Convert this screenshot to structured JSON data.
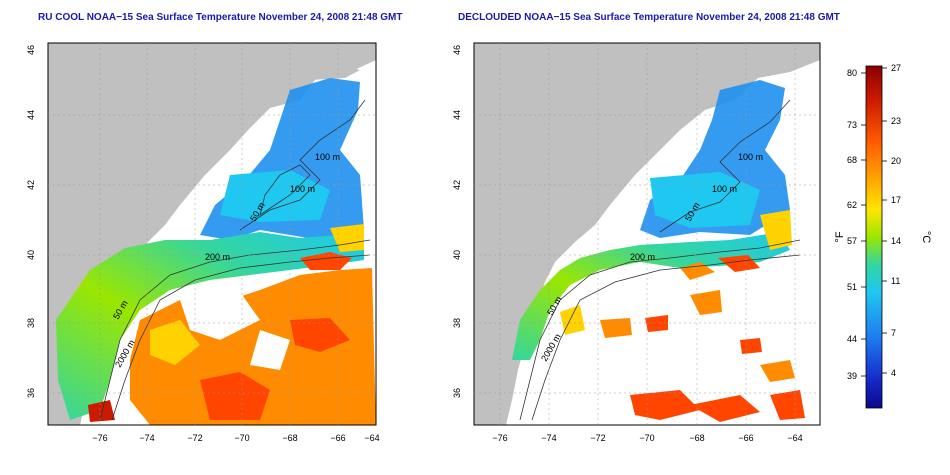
{
  "panels": [
    {
      "title": "RU COOL NOAA−15 Sea Surface Temperature November 24, 2008 21:48 GMT",
      "contour_labels": [
        "100 m",
        "100 m",
        "50 m",
        "200 m",
        "50 m",
        "2000 m"
      ],
      "coverage": "full"
    },
    {
      "title": "DECLOUDED NOAA−15 Sea Surface Temperature November 24, 2008 21:48 GMT",
      "contour_labels": [
        "100 m",
        "100 m",
        "50 m",
        "200 m",
        "50 m",
        "2000 m"
      ],
      "coverage": "declouded"
    }
  ],
  "axes": {
    "x_ticks": [
      "−76",
      "−74",
      "−72",
      "−70",
      "−68",
      "−66",
      "−64"
    ],
    "y_ticks": [
      "36",
      "38",
      "40",
      "42",
      "44",
      "46"
    ]
  },
  "colorbar": {
    "f_label": "°F",
    "c_label": "°C",
    "f_ticks": [
      "80",
      "73",
      "68",
      "62",
      "57",
      "51",
      "44",
      "39"
    ],
    "c_ticks": [
      "27",
      "23",
      "20",
      "17",
      "14",
      "11",
      "7",
      "4"
    ],
    "colors": [
      "#8b0000",
      "#cc1a00",
      "#ff5a00",
      "#ffa500",
      "#ffe600",
      "#9be600",
      "#33d6a0",
      "#1ec8f0",
      "#1e78f0",
      "#1428c8",
      "#0a0a8c"
    ]
  },
  "colors": {
    "land": "#c0c0c0",
    "title": "#1a1aaa"
  }
}
